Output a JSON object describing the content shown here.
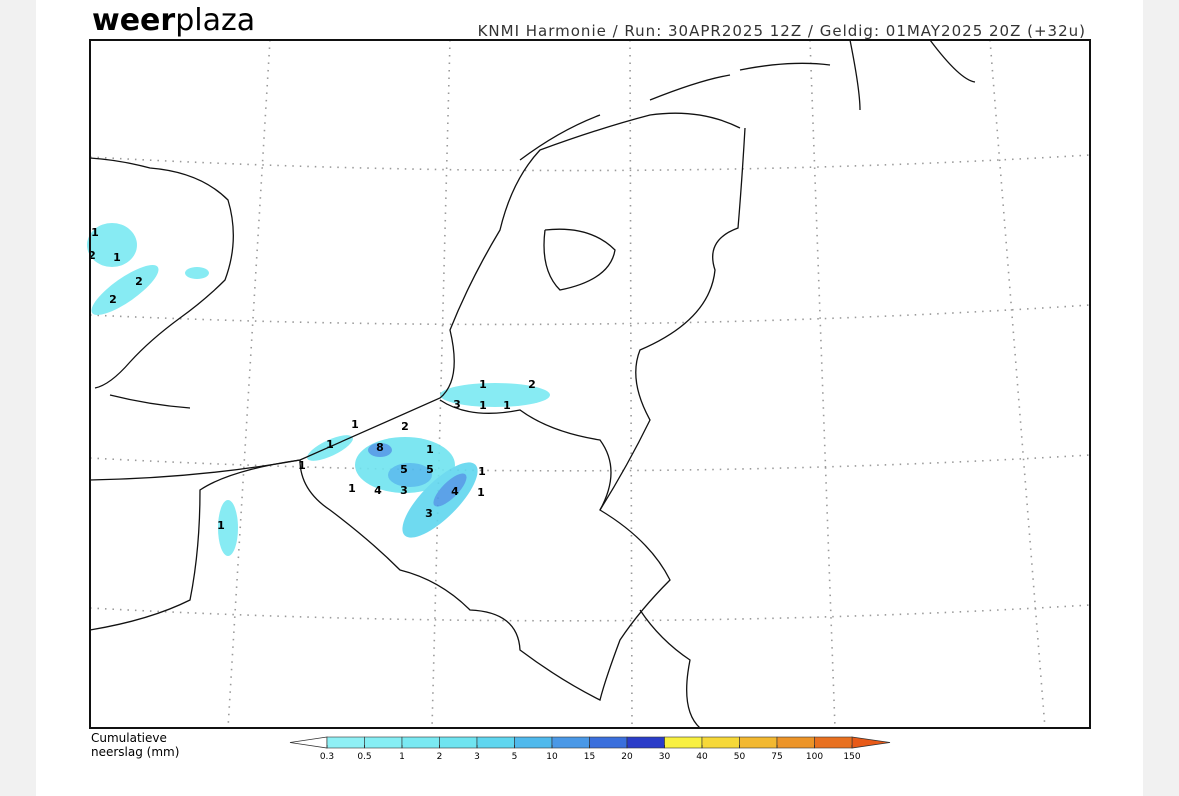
{
  "header": {
    "logo_bold": "weer",
    "logo_light": "plaza",
    "info": "KNMI Harmonie / Run: 30APR2025 12Z / Geldig: 01MAY2025 20Z (+32u)"
  },
  "legend": {
    "title_lines": [
      "Cumulatieve",
      "neerslag (mm)"
    ],
    "levels": [
      0.3,
      0.5,
      1,
      2,
      3,
      5,
      10,
      15,
      20,
      30,
      40,
      50,
      75,
      100,
      150
    ],
    "colors": [
      "#8ff0f5",
      "#86eef4",
      "#7ae9f2",
      "#6fe4f0",
      "#5fd6ef",
      "#4fb9ec",
      "#4a98e6",
      "#3a6fdc",
      "#2a3cc8",
      "#f8f040",
      "#f6d838",
      "#f2b830",
      "#ec9428",
      "#e87020"
    ],
    "low_color": "#ffffff",
    "high_color": "#e85a18"
  },
  "precip_labels": [
    1,
    2,
    1,
    2,
    2,
    1,
    2,
    3,
    1,
    1,
    2,
    1,
    1,
    8,
    1,
    1,
    5,
    5,
    1,
    1,
    4,
    3,
    4,
    1,
    3,
    1
  ]
}
